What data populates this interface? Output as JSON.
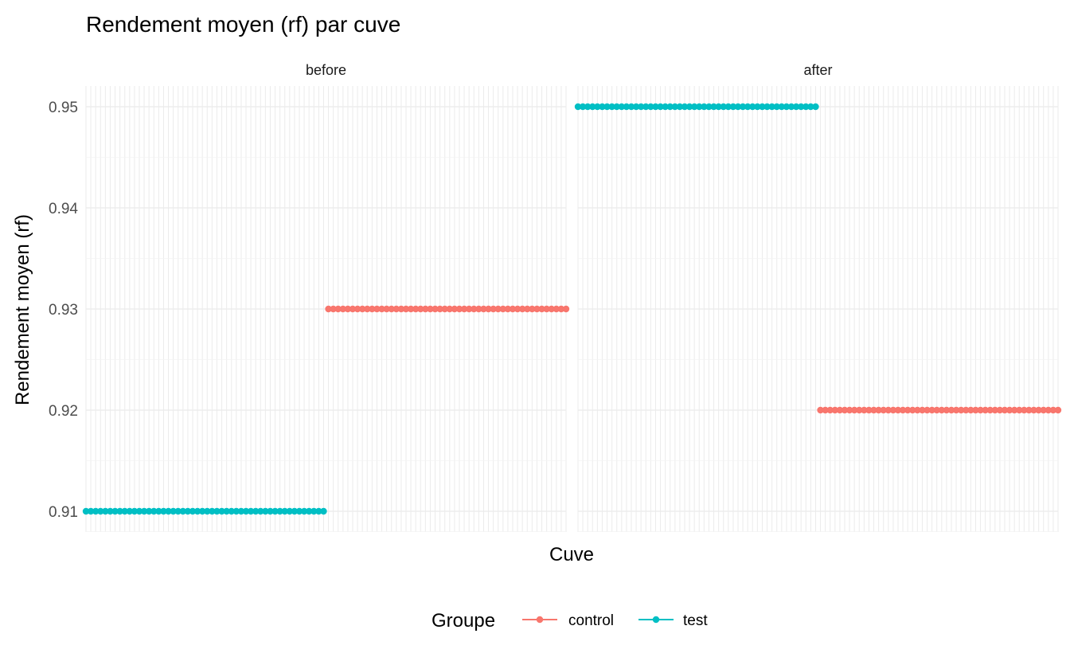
{
  "chart_data": {
    "type": "line",
    "title": "Rendement moyen (rf) par cuve",
    "xlabel": "Cuve",
    "ylabel": "Rendement moyen (rf)",
    "ylim": [
      0.908,
      0.952
    ],
    "yticks": [
      0.91,
      0.92,
      0.93,
      0.94,
      0.95
    ],
    "ytick_labels": [
      "0.91",
      "0.92",
      "0.93",
      "0.94",
      "0.95"
    ],
    "x_categories_count": 100,
    "grid": true,
    "legend": {
      "title": "Groupe",
      "position": "bottom",
      "entries": [
        {
          "label": "control",
          "color": "#F8766D"
        },
        {
          "label": "test",
          "color": "#00BFC4"
        }
      ]
    },
    "facets": [
      {
        "label": "before",
        "series": [
          {
            "name": "test",
            "color": "#00BFC4",
            "x_range": [
              1,
              50
            ],
            "value": 0.91
          },
          {
            "name": "control",
            "color": "#F8766D",
            "x_range": [
              51,
              100
            ],
            "value": 0.93
          }
        ]
      },
      {
        "label": "after",
        "series": [
          {
            "name": "test",
            "color": "#00BFC4",
            "x_range": [
              1,
              50
            ],
            "value": 0.95
          },
          {
            "name": "control",
            "color": "#F8766D",
            "x_range": [
              51,
              100
            ],
            "value": 0.92
          }
        ]
      }
    ]
  }
}
